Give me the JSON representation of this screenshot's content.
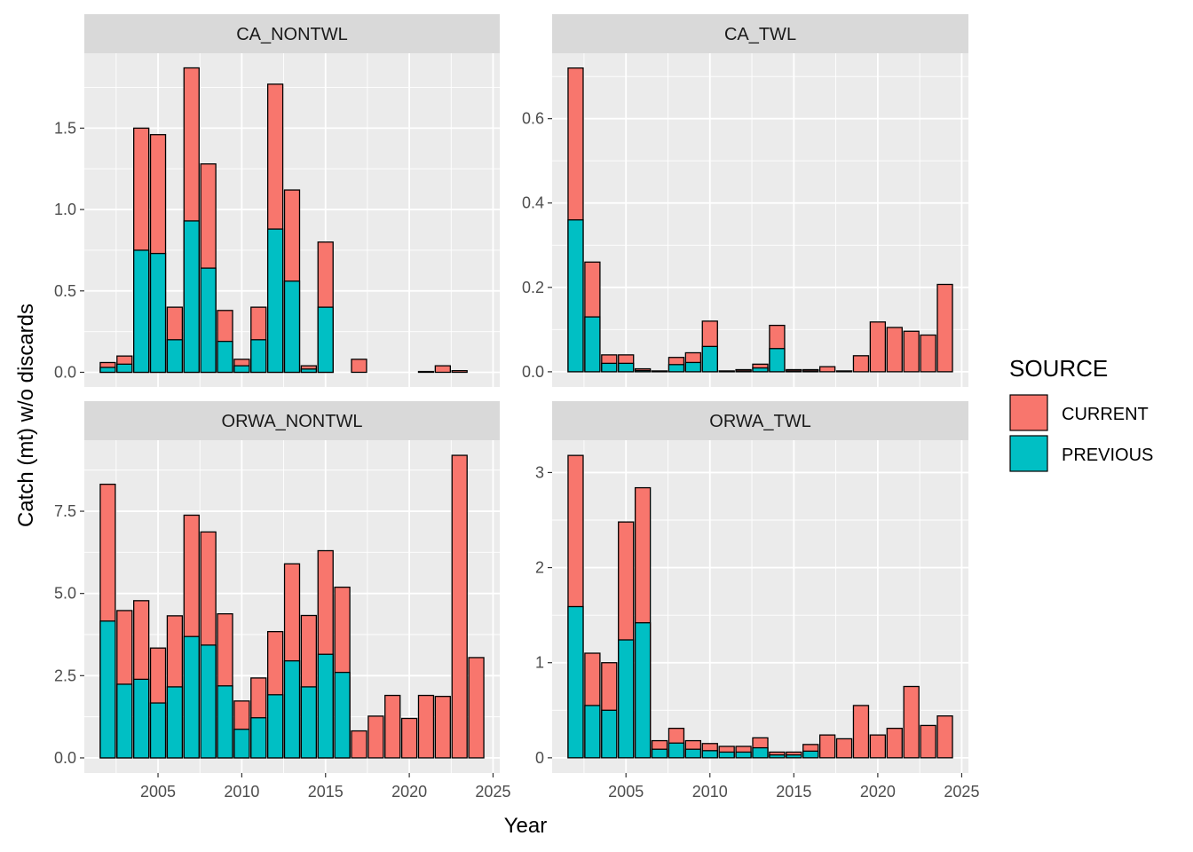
{
  "colors": {
    "CURRENT": "#F8766D",
    "PREVIOUS": "#00BFC4",
    "panel_bg": "#EBEBEB",
    "strip_bg": "#D9D9D9",
    "grid": "#FFFFFF",
    "outline": "#000000"
  },
  "chart_data": {
    "type": "bar",
    "stacked": true,
    "facets": "2x2",
    "xlabel": "Year",
    "ylabel": "Catch (mt) w/o discards",
    "xlim": [
      2000.6,
      2025.4
    ],
    "x_ticks": [
      2005,
      2010,
      2015,
      2020,
      2025
    ],
    "x_tick_labels": [
      "2005",
      "2010",
      "2015",
      "2020",
      "2025"
    ],
    "legend": {
      "title": "SOURCE",
      "entries": [
        "CURRENT",
        "PREVIOUS"
      ],
      "placement": "right"
    },
    "panels": [
      {
        "name": "CA_NONTWL",
        "ylim": [
          -0.09,
          1.96
        ],
        "y_ticks": [
          0,
          0.5,
          1.0,
          1.5
        ],
        "y_tick_labels": [
          "0.0",
          "0.5",
          "1.0",
          "1.5"
        ],
        "bars": [
          {
            "year": 2002,
            "current": 0.06,
            "previous": 0.03
          },
          {
            "year": 2003,
            "current": 0.1,
            "previous": 0.05
          },
          {
            "year": 2004,
            "current": 1.5,
            "previous": 0.75
          },
          {
            "year": 2005,
            "current": 1.46,
            "previous": 0.73
          },
          {
            "year": 2006,
            "current": 0.4,
            "previous": 0.2
          },
          {
            "year": 2007,
            "current": 1.87,
            "previous": 0.93
          },
          {
            "year": 2008,
            "current": 1.28,
            "previous": 0.64
          },
          {
            "year": 2009,
            "current": 0.38,
            "previous": 0.19
          },
          {
            "year": 2010,
            "current": 0.08,
            "previous": 0.04
          },
          {
            "year": 2011,
            "current": 0.4,
            "previous": 0.2
          },
          {
            "year": 2012,
            "current": 1.77,
            "previous": 0.88
          },
          {
            "year": 2013,
            "current": 1.12,
            "previous": 0.56
          },
          {
            "year": 2014,
            "current": 0.04,
            "previous": 0.02
          },
          {
            "year": 2015,
            "current": 0.8,
            "previous": 0.4
          },
          {
            "year": 2017,
            "current": 0.08,
            "previous": 0
          },
          {
            "year": 2021,
            "current": 0.005,
            "previous": 0
          },
          {
            "year": 2022,
            "current": 0.04,
            "previous": 0
          },
          {
            "year": 2023,
            "current": 0.01,
            "previous": 0
          }
        ]
      },
      {
        "name": "CA_TWL",
        "ylim": [
          -0.036,
          0.755
        ],
        "y_ticks": [
          0,
          0.2,
          0.4,
          0.6
        ],
        "y_tick_labels": [
          "0.0",
          "0.2",
          "0.4",
          "0.6"
        ],
        "bars": [
          {
            "year": 2002,
            "current": 0.72,
            "previous": 0.36
          },
          {
            "year": 2003,
            "current": 0.26,
            "previous": 0.13
          },
          {
            "year": 2004,
            "current": 0.04,
            "previous": 0.02
          },
          {
            "year": 2005,
            "current": 0.04,
            "previous": 0.02
          },
          {
            "year": 2006,
            "current": 0.007,
            "previous": 0.003
          },
          {
            "year": 2007,
            "current": 0.002,
            "previous": 0.001
          },
          {
            "year": 2008,
            "current": 0.034,
            "previous": 0.017
          },
          {
            "year": 2009,
            "current": 0.045,
            "previous": 0.022
          },
          {
            "year": 2010,
            "current": 0.12,
            "previous": 0.06
          },
          {
            "year": 2011,
            "current": 0.002,
            "previous": 0.001
          },
          {
            "year": 2012,
            "current": 0.005,
            "previous": 0.002
          },
          {
            "year": 2013,
            "current": 0.018,
            "previous": 0.009
          },
          {
            "year": 2014,
            "current": 0.11,
            "previous": 0.055
          },
          {
            "year": 2015,
            "current": 0.005,
            "previous": 0.002
          },
          {
            "year": 2016,
            "current": 0.005,
            "previous": 0.002
          },
          {
            "year": 2017,
            "current": 0.012,
            "previous": 0
          },
          {
            "year": 2018,
            "current": 0.002,
            "previous": 0
          },
          {
            "year": 2019,
            "current": 0.038,
            "previous": 0
          },
          {
            "year": 2020,
            "current": 0.118,
            "previous": 0
          },
          {
            "year": 2021,
            "current": 0.105,
            "previous": 0
          },
          {
            "year": 2022,
            "current": 0.096,
            "previous": 0
          },
          {
            "year": 2023,
            "current": 0.087,
            "previous": 0
          },
          {
            "year": 2024,
            "current": 0.207,
            "previous": 0
          }
        ]
      },
      {
        "name": "ORWA_NONTWL",
        "ylim": [
          -0.46,
          9.66
        ],
        "y_ticks": [
          0,
          2.5,
          5.0,
          7.5
        ],
        "y_tick_labels": [
          "0.0",
          "2.5",
          "5.0",
          "7.5"
        ],
        "bars": [
          {
            "year": 2002,
            "current": 8.32,
            "previous": 4.16
          },
          {
            "year": 2003,
            "current": 4.48,
            "previous": 2.24
          },
          {
            "year": 2004,
            "current": 4.78,
            "previous": 2.39
          },
          {
            "year": 2005,
            "current": 3.34,
            "previous": 1.67
          },
          {
            "year": 2006,
            "current": 4.32,
            "previous": 2.16
          },
          {
            "year": 2007,
            "current": 7.38,
            "previous": 3.69
          },
          {
            "year": 2008,
            "current": 6.87,
            "previous": 3.43
          },
          {
            "year": 2009,
            "current": 4.38,
            "previous": 2.19
          },
          {
            "year": 2010,
            "current": 1.73,
            "previous": 0.87
          },
          {
            "year": 2011,
            "current": 2.43,
            "previous": 1.22
          },
          {
            "year": 2012,
            "current": 3.84,
            "previous": 1.92
          },
          {
            "year": 2013,
            "current": 5.9,
            "previous": 2.95
          },
          {
            "year": 2014,
            "current": 4.33,
            "previous": 2.16
          },
          {
            "year": 2015,
            "current": 6.3,
            "previous": 3.15
          },
          {
            "year": 2016,
            "current": 5.19,
            "previous": 2.6
          },
          {
            "year": 2017,
            "current": 0.82,
            "previous": 0
          },
          {
            "year": 2018,
            "current": 1.27,
            "previous": 0
          },
          {
            "year": 2019,
            "current": 1.9,
            "previous": 0
          },
          {
            "year": 2020,
            "current": 1.2,
            "previous": 0
          },
          {
            "year": 2021,
            "current": 1.9,
            "previous": 0
          },
          {
            "year": 2022,
            "current": 1.87,
            "previous": 0
          },
          {
            "year": 2023,
            "current": 9.2,
            "previous": 0
          },
          {
            "year": 2024,
            "current": 3.05,
            "previous": 0
          }
        ]
      },
      {
        "name": "ORWA_TWL",
        "ylim": [
          -0.16,
          3.34
        ],
        "y_ticks": [
          0,
          1,
          2,
          3
        ],
        "y_tick_labels": [
          "0",
          "1",
          "2",
          "3"
        ],
        "bars": [
          {
            "year": 2002,
            "current": 3.18,
            "previous": 1.59
          },
          {
            "year": 2003,
            "current": 1.1,
            "previous": 0.55
          },
          {
            "year": 2004,
            "current": 1.0,
            "previous": 0.5
          },
          {
            "year": 2005,
            "current": 2.48,
            "previous": 1.24
          },
          {
            "year": 2006,
            "current": 2.84,
            "previous": 1.42
          },
          {
            "year": 2007,
            "current": 0.18,
            "previous": 0.09
          },
          {
            "year": 2008,
            "current": 0.31,
            "previous": 0.155
          },
          {
            "year": 2009,
            "current": 0.18,
            "previous": 0.09
          },
          {
            "year": 2010,
            "current": 0.15,
            "previous": 0.075
          },
          {
            "year": 2011,
            "current": 0.12,
            "previous": 0.06
          },
          {
            "year": 2012,
            "current": 0.12,
            "previous": 0.06
          },
          {
            "year": 2013,
            "current": 0.21,
            "previous": 0.105
          },
          {
            "year": 2014,
            "current": 0.06,
            "previous": 0.03
          },
          {
            "year": 2015,
            "current": 0.06,
            "previous": 0.03
          },
          {
            "year": 2016,
            "current": 0.14,
            "previous": 0.07
          },
          {
            "year": 2017,
            "current": 0.24,
            "previous": 0
          },
          {
            "year": 2018,
            "current": 0.2,
            "previous": 0
          },
          {
            "year": 2019,
            "current": 0.55,
            "previous": 0
          },
          {
            "year": 2020,
            "current": 0.24,
            "previous": 0
          },
          {
            "year": 2021,
            "current": 0.31,
            "previous": 0
          },
          {
            "year": 2022,
            "current": 0.75,
            "previous": 0
          },
          {
            "year": 2023,
            "current": 0.34,
            "previous": 0
          },
          {
            "year": 2024,
            "current": 0.44,
            "previous": 0
          }
        ]
      }
    ]
  }
}
